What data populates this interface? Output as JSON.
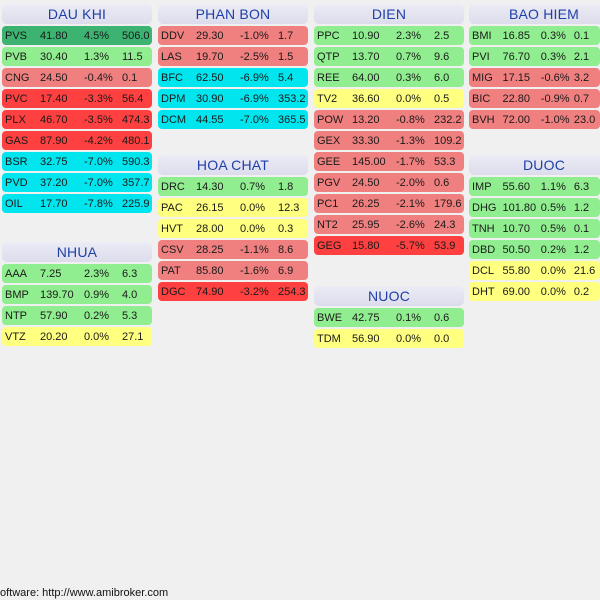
{
  "colors": {
    "dark_green": "#3cb371",
    "green": "#90ee90",
    "yellow": "#ffff80",
    "light_red": "#f08080",
    "red": "#ff4040",
    "cyan": "#00e5ee"
  },
  "columns": [
    {
      "groups": [
        {
          "name": "DAU KHI",
          "rows": [
            {
              "sym": "PVS",
              "price": "41.80",
              "chg": "4.5%",
              "vol": "506.0",
              "color": "#3cb371"
            },
            {
              "sym": "PVB",
              "price": "30.40",
              "chg": "1.3%",
              "vol": "11.5",
              "color": "#90ee90"
            },
            {
              "sym": "CNG",
              "price": "24.50",
              "chg": "-0.4%",
              "vol": "0.1",
              "color": "#f08080"
            },
            {
              "sym": "PVC",
              "price": "17.40",
              "chg": "-3.3%",
              "vol": "56.4",
              "color": "#ff4040"
            },
            {
              "sym": "PLX",
              "price": "46.70",
              "chg": "-3.5%",
              "vol": "474.3",
              "color": "#ff4040"
            },
            {
              "sym": "GAS",
              "price": "87.90",
              "chg": "-4.2%",
              "vol": "480.1",
              "color": "#ff4040"
            },
            {
              "sym": "BSR",
              "price": "32.75",
              "chg": "-7.0%",
              "vol": "590.3",
              "color": "#00e5ee"
            },
            {
              "sym": "PVD",
              "price": "37.20",
              "chg": "-7.0%",
              "vol": "357.7",
              "color": "#00e5ee"
            },
            {
              "sym": "OIL",
              "price": "17.70",
              "chg": "-7.8%",
              "vol": "225.9",
              "color": "#00e5ee"
            }
          ]
        },
        {
          "name": "NHUA",
          "rows": [
            {
              "sym": "AAA",
              "price": "7.25",
              "chg": "2.3%",
              "vol": "6.3",
              "color": "#90ee90"
            },
            {
              "sym": "BMP",
              "price": "139.70",
              "chg": "0.9%",
              "vol": "4.0",
              "color": "#90ee90"
            },
            {
              "sym": "NTP",
              "price": "57.90",
              "chg": "0.2%",
              "vol": "5.3",
              "color": "#90ee90"
            },
            {
              "sym": "VTZ",
              "price": "20.20",
              "chg": "0.0%",
              "vol": "27.1",
              "color": "#ffff80"
            }
          ]
        }
      ]
    },
    {
      "groups": [
        {
          "name": "PHAN BON",
          "rows": [
            {
              "sym": "DDV",
              "price": "29.30",
              "chg": "-1.0%",
              "vol": "1.7",
              "color": "#f08080"
            },
            {
              "sym": "LAS",
              "price": "19.70",
              "chg": "-2.5%",
              "vol": "1.5",
              "color": "#f08080"
            },
            {
              "sym": "BFC",
              "price": "62.50",
              "chg": "-6.9%",
              "vol": "5.4",
              "color": "#00e5ee"
            },
            {
              "sym": "DPM",
              "price": "30.90",
              "chg": "-6.9%",
              "vol": "353.2",
              "color": "#00e5ee"
            },
            {
              "sym": "DCM",
              "price": "44.55",
              "chg": "-7.0%",
              "vol": "365.5",
              "color": "#00e5ee"
            }
          ]
        },
        {
          "name": "HOA CHAT",
          "rows": [
            {
              "sym": "DRC",
              "price": "14.30",
              "chg": "0.7%",
              "vol": "1.8",
              "color": "#90ee90"
            },
            {
              "sym": "PAC",
              "price": "26.15",
              "chg": "0.0%",
              "vol": "12.3",
              "color": "#ffff80"
            },
            {
              "sym": "HVT",
              "price": "28.00",
              "chg": "0.0%",
              "vol": "0.3",
              "color": "#ffff80"
            },
            {
              "sym": "CSV",
              "price": "28.25",
              "chg": "-1.1%",
              "vol": "8.6",
              "color": "#f08080"
            },
            {
              "sym": "PAT",
              "price": "85.80",
              "chg": "-1.6%",
              "vol": "6.9",
              "color": "#f08080"
            },
            {
              "sym": "DGC",
              "price": "74.90",
              "chg": "-3.2%",
              "vol": "254.3",
              "color": "#ff4040"
            }
          ]
        }
      ]
    },
    {
      "groups": [
        {
          "name": "DIEN",
          "rows": [
            {
              "sym": "PPC",
              "price": "10.90",
              "chg": "2.3%",
              "vol": "2.5",
              "color": "#90ee90"
            },
            {
              "sym": "QTP",
              "price": "13.70",
              "chg": "0.7%",
              "vol": "9.6",
              "color": "#90ee90"
            },
            {
              "sym": "REE",
              "price": "64.00",
              "chg": "0.3%",
              "vol": "6.0",
              "color": "#90ee90"
            },
            {
              "sym": "TV2",
              "price": "36.60",
              "chg": "0.0%",
              "vol": "0.5",
              "color": "#ffff80"
            },
            {
              "sym": "POW",
              "price": "13.20",
              "chg": "-0.8%",
              "vol": "232.2",
              "color": "#f08080"
            },
            {
              "sym": "GEX",
              "price": "33.30",
              "chg": "-1.3%",
              "vol": "109.2",
              "color": "#f08080"
            },
            {
              "sym": "GEE",
              "price": "145.00",
              "chg": "-1.7%",
              "vol": "53.3",
              "color": "#f08080"
            },
            {
              "sym": "PGV",
              "price": "24.50",
              "chg": "-2.0%",
              "vol": "0.6",
              "color": "#f08080"
            },
            {
              "sym": "PC1",
              "price": "26.25",
              "chg": "-2.1%",
              "vol": "179.6",
              "color": "#f08080"
            },
            {
              "sym": "NT2",
              "price": "25.95",
              "chg": "-2.6%",
              "vol": "24.3",
              "color": "#f08080"
            },
            {
              "sym": "GEG",
              "price": "15.80",
              "chg": "-5.7%",
              "vol": "53.9",
              "color": "#ff4040"
            }
          ]
        },
        {
          "name": "NUOC",
          "rows": [
            {
              "sym": "BWE",
              "price": "42.75",
              "chg": "0.1%",
              "vol": "0.6",
              "color": "#90ee90"
            },
            {
              "sym": "TDM",
              "price": "56.90",
              "chg": "0.0%",
              "vol": "0.0",
              "color": "#ffff80"
            }
          ]
        }
      ]
    },
    {
      "groups": [
        {
          "name": "BAO HIEM",
          "rows": [
            {
              "sym": "BMI",
              "price": "16.85",
              "chg": "0.3%",
              "vol": "0.1",
              "color": "#90ee90"
            },
            {
              "sym": "PVI",
              "price": "76.70",
              "chg": "0.3%",
              "vol": "2.1",
              "color": "#90ee90"
            },
            {
              "sym": "MIG",
              "price": "17.15",
              "chg": "-0.6%",
              "vol": "3.2",
              "color": "#f08080"
            },
            {
              "sym": "BIC",
              "price": "22.80",
              "chg": "-0.9%",
              "vol": "0.7",
              "color": "#f08080"
            },
            {
              "sym": "BVH",
              "price": "72.00",
              "chg": "-1.0%",
              "vol": "23.0",
              "color": "#f08080"
            }
          ]
        },
        {
          "name": "DUOC",
          "rows": [
            {
              "sym": "IMP",
              "price": "55.60",
              "chg": "1.1%",
              "vol": "6.3",
              "color": "#90ee90"
            },
            {
              "sym": "DHG",
              "price": "101.80",
              "chg": "0.5%",
              "vol": "1.2",
              "color": "#90ee90"
            },
            {
              "sym": "TNH",
              "price": "10.70",
              "chg": "0.5%",
              "vol": "0.1",
              "color": "#90ee90"
            },
            {
              "sym": "DBD",
              "price": "50.50",
              "chg": "0.2%",
              "vol": "1.2",
              "color": "#90ee90"
            },
            {
              "sym": "DCL",
              "price": "55.80",
              "chg": "0.0%",
              "vol": "21.6",
              "color": "#ffff80"
            },
            {
              "sym": "DHT",
              "price": "69.00",
              "chg": "0.0%",
              "vol": "0.2",
              "color": "#ffff80"
            }
          ]
        }
      ]
    }
  ],
  "footer": {
    "text": "oftware: http://www.amibroker.com"
  }
}
